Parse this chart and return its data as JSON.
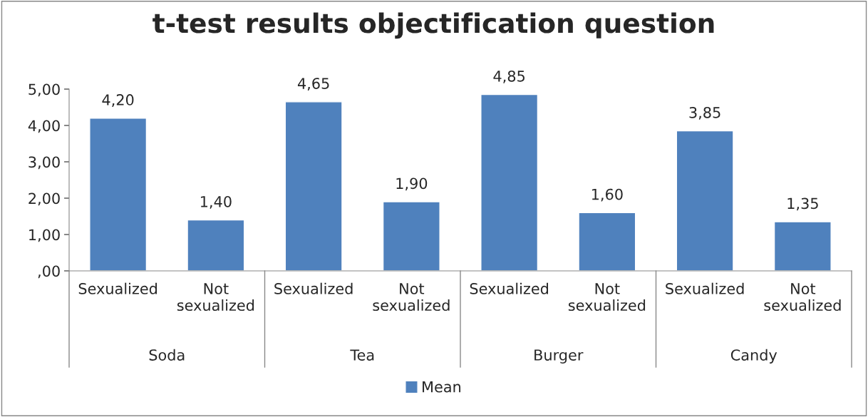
{
  "chart_data": {
    "type": "bar",
    "title": "t-test results objectification question",
    "categories": [
      "Sexualized",
      "Not sexualized",
      "Sexualized",
      "Not sexualized",
      "Sexualized",
      "Not sexualized",
      "Sexualized",
      "Not sexualized"
    ],
    "series": [
      {
        "name": "Mean",
        "color": "#4f81bd",
        "values": [
          4.2,
          1.4,
          4.65,
          1.9,
          4.85,
          1.6,
          3.85,
          1.35
        ],
        "value_labels": [
          "4,20",
          "1,40",
          "4,65",
          "1,90",
          "4,85",
          "1,60",
          "3,85",
          "1,35"
        ]
      }
    ],
    "annotations": [
      "Soda",
      "Tea",
      "Burger",
      "Candy"
    ],
    "ylim": [
      0,
      5
    ],
    "yticks": [
      {
        "value": 0,
        "label": ",00"
      },
      {
        "value": 1,
        "label": "1,00"
      },
      {
        "value": 2,
        "label": "2,00"
      },
      {
        "value": 3,
        "label": "3,00"
      },
      {
        "value": 4,
        "label": "4,00"
      },
      {
        "value": 5,
        "label": "5,00"
      }
    ],
    "grid": false,
    "legend": "bottom"
  }
}
